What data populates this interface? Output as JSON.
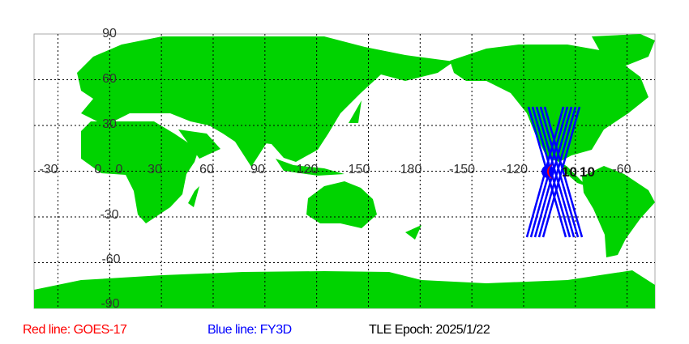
{
  "map": {
    "colors": {
      "land": "#00d300",
      "ocean": "#ffffff",
      "grid": "#000000",
      "red_track": "#ff0000",
      "blue_track": "#0000ff"
    },
    "lat_labels": [
      "90",
      "60",
      "30",
      "0",
      "-30",
      "-60",
      "-90"
    ],
    "lon_labels": [
      "-30",
      "0",
      "30",
      "60",
      "90",
      "120",
      "150",
      "180",
      "-150",
      "-120",
      "-60"
    ],
    "satellite_label": "10"
  },
  "legend": {
    "red": "Red line: GOES-17",
    "blue": "Blue line: FY3D",
    "epoch": "TLE Epoch: 2025/1/22"
  }
}
